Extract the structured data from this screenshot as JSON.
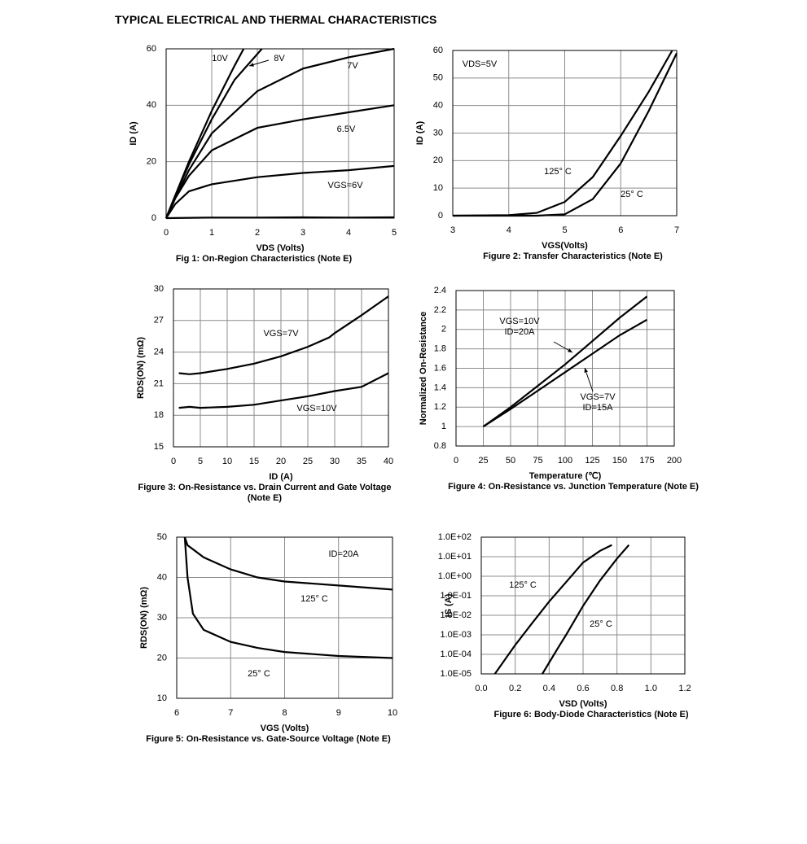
{
  "title": "TYPICAL ELECTRICAL AND THERMAL CHARACTERISTICS",
  "chart_data": [
    {
      "type": "line",
      "caption": "Fig 1: On-Region Characteristics (Note E)",
      "xlabel": "VDS (Volts)",
      "ylabel": "ID (A)",
      "xlim": [
        0,
        5
      ],
      "ylim": [
        0,
        60
      ],
      "xticks": [
        0,
        1,
        2,
        3,
        4,
        5
      ],
      "yticks": [
        0,
        20,
        40,
        60
      ],
      "grid": true,
      "annotations": [
        "10V",
        "8V",
        "7V",
        "6.5V",
        "VGS=6V"
      ],
      "series": [
        {
          "name": "10V",
          "color": "#000000",
          "x": [
            0,
            0.2,
            0.5,
            1,
            1.5,
            1.7
          ],
          "values": [
            0,
            8,
            20,
            38,
            54,
            60
          ]
        },
        {
          "name": "8V",
          "color": "#000000",
          "x": [
            0,
            0.2,
            0.5,
            1,
            1.5,
            2.1
          ],
          "values": [
            0,
            8,
            19,
            35,
            49,
            60
          ]
        },
        {
          "name": "7V",
          "color": "#000000",
          "x": [
            0,
            0.2,
            0.5,
            1,
            2,
            3,
            4,
            5
          ],
          "values": [
            0,
            7,
            17,
            30,
            45,
            53,
            57,
            60
          ]
        },
        {
          "name": "6.5V",
          "color": "#000000",
          "x": [
            0,
            0.2,
            0.5,
            1,
            2,
            3,
            4,
            5
          ],
          "values": [
            0,
            7,
            15,
            24,
            32,
            35,
            37.5,
            40
          ]
        },
        {
          "name": "VGS=6V",
          "color": "#000000",
          "x": [
            0,
            0.2,
            0.5,
            1,
            2,
            3,
            4,
            5
          ],
          "values": [
            0,
            5,
            9.5,
            12,
            14.5,
            16,
            17,
            18.5
          ]
        },
        {
          "color": "#000000",
          "x": [
            0,
            1,
            2,
            3,
            4,
            5
          ],
          "values": [
            0,
            0.2,
            0.2,
            0.3,
            0.2,
            0.3
          ]
        }
      ]
    },
    {
      "type": "line",
      "caption": "Figure 2: Transfer Characteristics (Note E)",
      "xlabel": "VGS(Volts)",
      "ylabel": "ID (A)",
      "xlim": [
        3,
        7
      ],
      "ylim": [
        0,
        60
      ],
      "xticks": [
        3,
        4,
        5,
        6,
        7
      ],
      "yticks": [
        0,
        10,
        20,
        30,
        40,
        50,
        60
      ],
      "grid": true,
      "annotations": [
        "VDS=5V",
        "125° C",
        "25° C"
      ],
      "series": [
        {
          "name": "125° C",
          "color": "#000000",
          "x": [
            3,
            4,
            4.5,
            5,
            5.5,
            6,
            6.5,
            6.92
          ],
          "values": [
            0,
            0.2,
            1,
            5,
            14,
            29,
            45,
            60
          ]
        },
        {
          "name": "25° C",
          "color": "#000000",
          "x": [
            3,
            4.5,
            5,
            5.5,
            6,
            6.5,
            7
          ],
          "values": [
            0,
            0,
            0.5,
            6,
            19,
            38,
            59
          ]
        }
      ]
    },
    {
      "type": "line",
      "caption": "Figure 3: On-Resistance vs. Drain Current and Gate Voltage (Note E)",
      "xlabel": "ID (A)",
      "ylabel": "RDS(ON) (mΩ)",
      "xlim": [
        0,
        40
      ],
      "ylim": [
        15,
        30
      ],
      "xticks": [
        0,
        5,
        10,
        15,
        20,
        25,
        30,
        35,
        40
      ],
      "yticks": [
        15,
        18,
        21,
        24,
        27,
        30
      ],
      "grid": true,
      "annotations": [
        "VGS=7V",
        "VGS=10V"
      ],
      "series": [
        {
          "name": "VGS=7V",
          "color": "#000000",
          "x": [
            1,
            3,
            5,
            10,
            15,
            20,
            25,
            29,
            30,
            35,
            40
          ],
          "values": [
            22,
            21.9,
            22,
            22.4,
            22.9,
            23.6,
            24.5,
            25.4,
            25.8,
            27.5,
            29.3
          ]
        },
        {
          "name": "VGS=10V",
          "color": "#000000",
          "x": [
            1,
            3,
            5,
            10,
            15,
            20,
            25,
            30,
            35,
            40
          ],
          "values": [
            18.7,
            18.8,
            18.7,
            18.8,
            19.0,
            19.4,
            19.8,
            20.3,
            20.7,
            22
          ]
        }
      ]
    },
    {
      "type": "line",
      "caption": "Figure 4: On-Resistance vs. Junction Temperature (Note E)",
      "xlabel": "Temperature (℃)",
      "ylabel": "Normalized On-Resistance",
      "xlim": [
        0,
        200
      ],
      "ylim": [
        0.8,
        2.4
      ],
      "xticks": [
        0,
        25,
        50,
        75,
        100,
        125,
        150,
        175,
        200
      ],
      "yticks": [
        0.8,
        1,
        1.2,
        1.4,
        1.6,
        1.8,
        2,
        2.2,
        2.4
      ],
      "grid": true,
      "annotations": [
        "VGS=10V",
        "ID=20A",
        "VGS=7V",
        "ID=15A"
      ],
      "series": [
        {
          "color": "#000000",
          "x": [
            25,
            50,
            75,
            100,
            125,
            150,
            175
          ],
          "values": [
            1,
            1.2,
            1.42,
            1.64,
            1.88,
            2.12,
            2.34
          ]
        },
        {
          "color": "#000000",
          "x": [
            25,
            50,
            75,
            100,
            125,
            150,
            175
          ],
          "values": [
            1,
            1.18,
            1.37,
            1.56,
            1.75,
            1.94,
            2.1
          ]
        }
      ]
    },
    {
      "type": "line",
      "caption": "Figure 5: On-Resistance vs. Gate-Source Voltage (Note E)",
      "xlabel": "VGS (Volts)",
      "ylabel": "RDS(ON) (mΩ)",
      "xlim": [
        6,
        10
      ],
      "ylim": [
        10,
        50
      ],
      "xticks": [
        6,
        7,
        8,
        9,
        10
      ],
      "yticks": [
        10,
        20,
        30,
        40,
        50
      ],
      "grid": true,
      "annotations": [
        "ID=20A",
        "125° C",
        "25° C"
      ],
      "series": [
        {
          "name": "125° C",
          "color": "#000000",
          "x": [
            6.15,
            6.2,
            6.5,
            7,
            7.5,
            8,
            9,
            10
          ],
          "values": [
            50,
            48,
            45,
            42,
            40,
            39,
            38,
            37
          ]
        },
        {
          "name": "25° C",
          "color": "#000000",
          "x": [
            6.15,
            6.2,
            6.3,
            6.5,
            7,
            7.5,
            8,
            9,
            10
          ],
          "values": [
            50,
            40,
            31,
            27,
            24,
            22.5,
            21.5,
            20.5,
            20
          ]
        }
      ]
    },
    {
      "type": "line",
      "caption": "Figure 6: Body-Diode Characteristics (Note E)",
      "xlabel": "VSD (Volts)",
      "ylabel": "IS (A)",
      "log_y": true,
      "xlim": [
        0,
        1.2
      ],
      "ylim": [
        1e-05,
        100
      ],
      "xticks": [
        {
          "value": 0,
          "label": "0.0"
        },
        0.2,
        0.4,
        0.6,
        0.8,
        {
          "value": 1,
          "label": "1.0"
        },
        1.2
      ],
      "yticks": [
        {
          "value": 1e-05,
          "label": "1.0E-05"
        },
        {
          "value": 0.0001,
          "label": "1.0E-04"
        },
        {
          "value": 0.001,
          "label": "1.0E-03"
        },
        {
          "value": 0.01,
          "label": "1.0E-02"
        },
        {
          "value": 0.1,
          "label": "1.0E-01"
        },
        {
          "value": 1,
          "label": "1.0E+00"
        },
        {
          "value": 10,
          "label": "1.0E+01"
        },
        {
          "value": 100,
          "label": "1.0E+02"
        }
      ],
      "grid": true,
      "annotations": [
        "125° C",
        "25° C"
      ],
      "series": [
        {
          "name": "125° C",
          "color": "#000000",
          "x": [
            0.08,
            0.2,
            0.3,
            0.4,
            0.5,
            0.6,
            0.7,
            0.77
          ],
          "values": [
            1e-05,
            0.0003,
            0.004,
            0.05,
            0.5,
            5,
            20,
            40
          ]
        },
        {
          "name": "25° C",
          "color": "#000000",
          "x": [
            0.36,
            0.45,
            0.5,
            0.6,
            0.7,
            0.8,
            0.87
          ],
          "values": [
            1e-05,
            0.0002,
            0.001,
            0.03,
            0.6,
            8,
            40
          ]
        }
      ]
    }
  ]
}
